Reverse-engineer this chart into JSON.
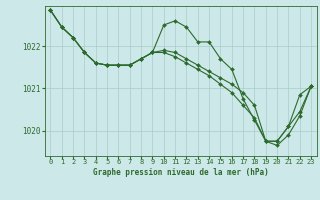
{
  "background_color": "#cce8e8",
  "plot_bg_color": "#cce8e8",
  "line_color": "#2d6a2d",
  "grid_color": "#aacccc",
  "title": "Graphe pression niveau de la mer (hPa)",
  "xlim": [
    -0.5,
    23.5
  ],
  "ylim": [
    1019.4,
    1022.95
  ],
  "yticks": [
    1020,
    1021,
    1022
  ],
  "xticks": [
    0,
    1,
    2,
    3,
    4,
    5,
    6,
    7,
    8,
    9,
    10,
    11,
    12,
    13,
    14,
    15,
    16,
    17,
    18,
    19,
    20,
    21,
    22,
    23
  ],
  "series": [
    [
      1022.85,
      1022.45,
      1022.2,
      1021.85,
      1021.6,
      1021.55,
      1021.55,
      1021.55,
      1021.7,
      1021.85,
      1022.5,
      1022.6,
      1022.45,
      1022.1,
      1022.1,
      1021.7,
      1021.45,
      1020.75,
      1020.25,
      1019.75,
      1019.75,
      1020.1,
      1020.45,
      1021.05
    ],
    [
      1022.85,
      1022.45,
      1022.2,
      1021.85,
      1021.6,
      1021.55,
      1021.55,
      1021.55,
      1021.7,
      1021.85,
      1021.9,
      1021.85,
      1021.7,
      1021.55,
      1021.4,
      1021.25,
      1021.1,
      1020.9,
      1020.6,
      1019.75,
      1019.75,
      1020.1,
      1020.85,
      1021.05
    ],
    [
      1022.85,
      1022.45,
      1022.2,
      1021.85,
      1021.6,
      1021.55,
      1021.55,
      1021.55,
      1021.7,
      1021.85,
      1021.85,
      1021.75,
      1021.6,
      1021.45,
      1021.3,
      1021.1,
      1020.9,
      1020.6,
      1020.3,
      1019.75,
      1019.65,
      1019.9,
      1020.35,
      1021.05
    ]
  ]
}
